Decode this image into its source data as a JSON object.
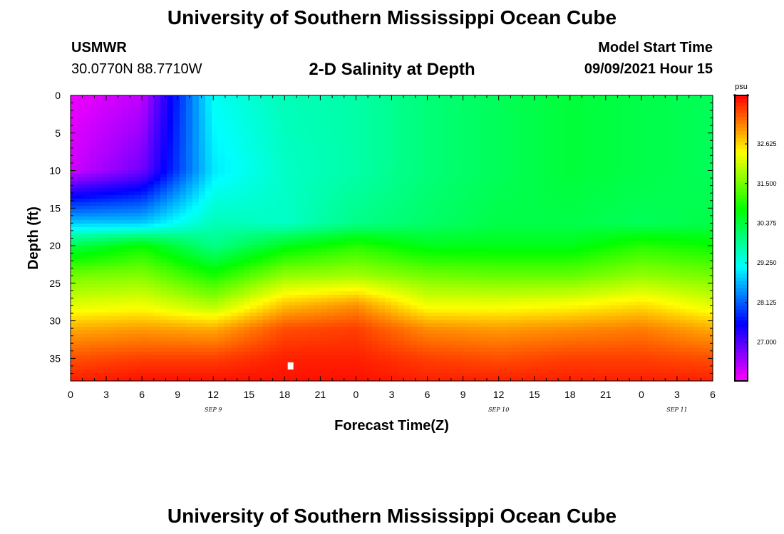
{
  "header": {
    "title": "University of Southern Mississippi Ocean Cube",
    "station": "USMWR",
    "coordinates": "30.0770N  88.7710W",
    "plot_title": "2-D Salinity at Depth",
    "model_start_label": "Model Start Time",
    "model_start_value": "09/09/2021 Hour 15"
  },
  "footer": {
    "title": "University of Southern Mississippi Ocean Cube"
  },
  "chart_data": {
    "type": "heatmap",
    "title": "2-D Salinity at Depth",
    "xlabel": "Forecast Time(Z)",
    "ylabel": "Depth (ft)",
    "x_range_hours": [
      0,
      54
    ],
    "x_ticks": [
      "0",
      "3",
      "6",
      "9",
      "12",
      "15",
      "18",
      "21",
      "0",
      "3",
      "6",
      "9",
      "12",
      "15",
      "18",
      "21",
      "0",
      "3",
      "6"
    ],
    "date_labels": [
      {
        "text": "SEP 9",
        "hour": 12
      },
      {
        "text": "SEP 10",
        "hour": 36
      },
      {
        "text": "SEP 11",
        "hour": 51
      }
    ],
    "y_range_ft": [
      0,
      38
    ],
    "y_ticks": [
      0,
      5,
      10,
      15,
      20,
      25,
      30,
      35
    ],
    "colorbar": {
      "unit": "psu",
      "range": [
        25.9,
        34.0
      ],
      "tick_labels": [
        "32.625",
        "31.500",
        "30.375",
        "29.250",
        "28.125",
        "27.000"
      ],
      "tick_values": [
        32.625,
        31.5,
        30.375,
        29.25,
        28.125,
        27.0
      ]
    },
    "marker": {
      "hour": 18.5,
      "depth_ft": 36
    },
    "salinity_grid": {
      "hours": [
        0,
        6,
        12,
        18,
        24,
        30,
        36,
        42,
        48,
        54
      ],
      "depths_ft": [
        0,
        10,
        17,
        20,
        24,
        28,
        31,
        35,
        38
      ],
      "values": [
        [
          26.0,
          26.3,
          29.2,
          29.6,
          29.7,
          30.0,
          30.2,
          30.4,
          30.3,
          30.2
        ],
        [
          26.2,
          26.8,
          29.0,
          29.5,
          29.7,
          30.0,
          30.2,
          30.4,
          30.3,
          30.2
        ],
        [
          28.8,
          28.8,
          29.6,
          29.5,
          29.9,
          30.1,
          30.3,
          30.3,
          30.2,
          30.3
        ],
        [
          30.3,
          30.8,
          29.9,
          30.6,
          31.0,
          30.6,
          30.6,
          30.6,
          31.0,
          30.8
        ],
        [
          31.5,
          31.6,
          30.9,
          31.7,
          31.8,
          31.5,
          31.4,
          31.4,
          31.7,
          31.5
        ],
        [
          32.2,
          32.3,
          31.9,
          32.8,
          33.1,
          32.3,
          32.3,
          32.4,
          32.6,
          32.2
        ],
        [
          32.9,
          33.0,
          32.9,
          33.5,
          33.6,
          33.1,
          33.0,
          33.1,
          33.2,
          32.9
        ],
        [
          33.5,
          33.6,
          33.6,
          33.8,
          33.8,
          33.6,
          33.5,
          33.6,
          33.6,
          33.5
        ],
        [
          33.8,
          33.9,
          33.9,
          33.9,
          33.9,
          33.8,
          33.8,
          33.8,
          33.8,
          33.8
        ]
      ]
    }
  }
}
